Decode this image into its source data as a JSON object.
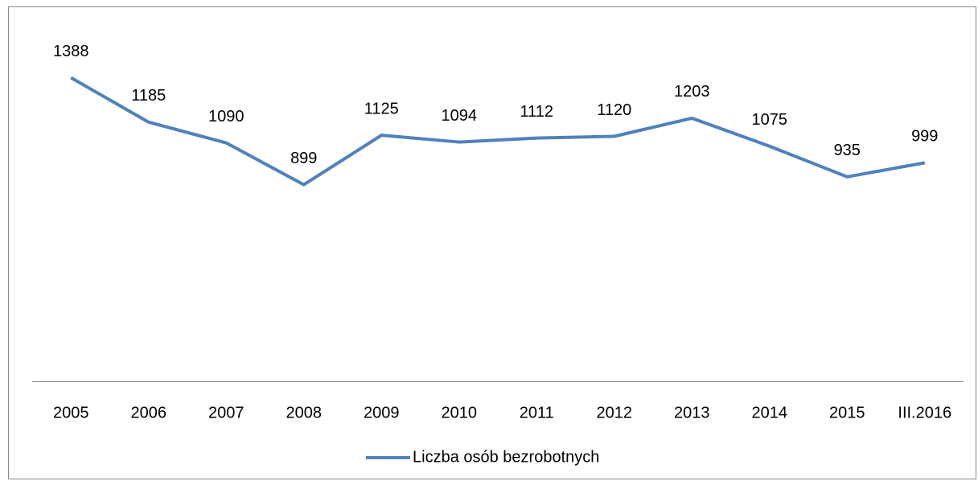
{
  "chart_data": {
    "type": "line",
    "categories": [
      "2005",
      "2006",
      "2007",
      "2008",
      "2009",
      "2010",
      "2011",
      "2012",
      "2013",
      "2014",
      "2015",
      "III.2016"
    ],
    "series": [
      {
        "name": "Liczba osób bezrobotnych",
        "color": "#4f81bd",
        "values": [
          1388,
          1185,
          1090,
          899,
          1125,
          1094,
          1112,
          1120,
          1203,
          1075,
          935,
          999
        ]
      }
    ],
    "ylim": [
      0,
      1600
    ],
    "legend": "bottom"
  }
}
